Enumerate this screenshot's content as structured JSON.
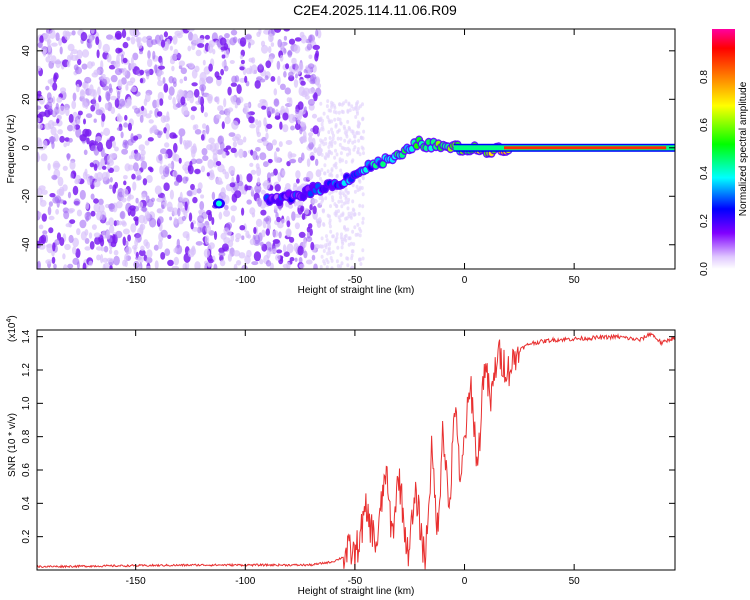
{
  "title": "C2E4.2025.114.11.06.R09",
  "chart_data": [
    {
      "type": "heatmap",
      "xlabel": "Height of straight line (km)",
      "ylabel": "Frequency (Hz)",
      "xlim": [
        -195,
        96
      ],
      "ylim": [
        -50,
        49
      ],
      "xticks": [
        -150,
        -100,
        -50,
        0,
        50
      ],
      "yticks": [
        -40,
        -20,
        0,
        20,
        40
      ],
      "colorbar": {
        "label": "Normalized spectral amplitude",
        "range": [
          0,
          1
        ],
        "ticks": [
          "0.0",
          "0.2",
          "0.4",
          "0.6",
          "0.8"
        ],
        "colors": [
          "#ffffff",
          "#e0c8ff",
          "#8000ff",
          "#0000ff",
          "#00ffff",
          "#00ff00",
          "#ffff00",
          "#ff8000",
          "#ff0000",
          "#ff00a0"
        ]
      },
      "ridge": [
        {
          "x": -112,
          "y": -23,
          "amp": 0.3
        },
        {
          "x": -88,
          "y": -22,
          "amp": 0.2
        },
        {
          "x": -78,
          "y": -20,
          "amp": 0.25
        },
        {
          "x": -68,
          "y": -17,
          "amp": 0.28
        },
        {
          "x": -58,
          "y": -15,
          "amp": 0.32
        },
        {
          "x": -50,
          "y": -11,
          "amp": 0.35
        },
        {
          "x": -42,
          "y": -7,
          "amp": 0.4
        },
        {
          "x": -35,
          "y": -5,
          "amp": 0.45
        },
        {
          "x": -28,
          "y": -3,
          "amp": 0.5
        },
        {
          "x": -22,
          "y": 2,
          "amp": 0.55
        },
        {
          "x": -15,
          "y": 1,
          "amp": 0.6
        },
        {
          "x": -5,
          "y": 0,
          "amp": 0.65
        },
        {
          "x": 10,
          "y": -1,
          "amp": 0.7
        },
        {
          "x": 20,
          "y": 0,
          "amp": 0.85
        },
        {
          "x": 96,
          "y": 0,
          "amp": 0.85
        }
      ]
    },
    {
      "type": "line",
      "xlabel": "Height of straight line (km)",
      "ylabel": "SNR (10 * v/v)",
      "yunit_multiplier": "(x10",
      "yunit_exponent": "4",
      "yunit_close": ")",
      "xlim": [
        -195,
        96
      ],
      "ylim": [
        0,
        1.44
      ],
      "xticks": [
        -150,
        -100,
        -50,
        0,
        50
      ],
      "yticks": [
        0.2,
        0.4,
        0.6,
        0.8,
        1.0,
        1.2,
        1.4
      ],
      "color": "#e83030",
      "series": [
        {
          "x": [
            -195,
            -120,
            -70,
            -60,
            -55,
            -52,
            -50,
            -45,
            -40,
            -36,
            -33,
            -30,
            -26,
            -22,
            -18,
            -15,
            -12,
            -10,
            -7,
            -4,
            -2,
            0,
            3,
            6,
            9,
            12,
            15,
            20,
            25,
            30,
            40,
            55,
            70,
            80,
            85,
            90,
            96
          ],
          "y": [
            0.02,
            0.03,
            0.03,
            0.05,
            0.08,
            0.12,
            0.08,
            0.35,
            0.15,
            0.6,
            0.2,
            0.58,
            0.1,
            0.45,
            0.05,
            0.7,
            0.2,
            0.9,
            0.35,
            1.05,
            0.45,
            0.8,
            1.1,
            0.6,
            1.25,
            1.0,
            1.3,
            1.2,
            1.32,
            1.36,
            1.38,
            1.39,
            1.4,
            1.38,
            1.42,
            1.36,
            1.4
          ]
        }
      ]
    }
  ]
}
